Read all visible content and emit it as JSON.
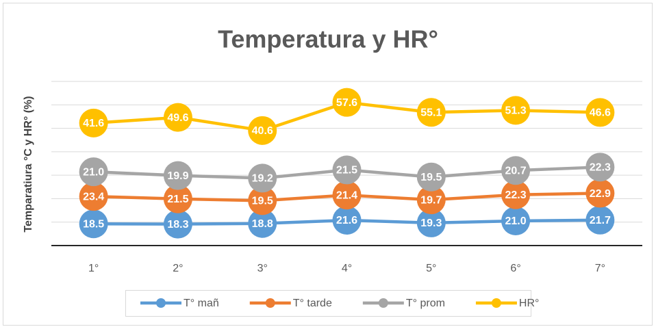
{
  "chart_data": {
    "type": "line",
    "stacked": true,
    "title": "Temperatura y HR°",
    "y_label": "Temparatiura °C y HR°  (%)",
    "categories": [
      "1°",
      "2°",
      "3°",
      "4°",
      "5°",
      "6°",
      "7°"
    ],
    "series": [
      {
        "name": "T° mañ",
        "color": "#5b9bd5",
        "values": [
          18.5,
          18.3,
          18.8,
          21.6,
          19.3,
          21.0,
          21.7
        ],
        "value_labels": [
          "18.5",
          "18.3",
          "18.8",
          "21.6",
          "19.3",
          "21.0",
          "21.7"
        ]
      },
      {
        "name": "T° tarde",
        "color": "#ed7d31",
        "values": [
          23.4,
          21.5,
          19.5,
          21.4,
          19.7,
          22.3,
          22.9
        ],
        "value_labels": [
          "23.4",
          "21.5",
          "19.5",
          "21.4",
          "19.7",
          "22.3",
          "22.9"
        ]
      },
      {
        "name": "T° prom",
        "color": "#a5a5a5",
        "values": [
          21.0,
          19.9,
          19.2,
          21.5,
          19.5,
          20.7,
          22.3
        ],
        "value_labels": [
          "21.0",
          "19.9",
          "19.2",
          "21.5",
          "19.5",
          "20.7",
          "22.3"
        ]
      },
      {
        "name": "HR°",
        "color": "#ffc000",
        "values": [
          41.6,
          49.6,
          40.6,
          57.6,
          55.1,
          51.3,
          46.6
        ],
        "value_labels": [
          "41.6",
          "49.6",
          "40.6",
          "57.6",
          "55.1",
          "51.3",
          "46.6"
        ]
      }
    ],
    "ylim": [
      0,
      140
    ],
    "yticks": [
      0,
      20,
      40,
      60,
      80,
      100,
      120,
      140
    ],
    "grid": true,
    "legend": "bottom"
  }
}
